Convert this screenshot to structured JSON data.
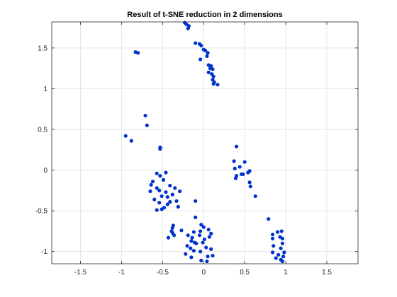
{
  "chart_data": {
    "type": "scatter",
    "title": "Result of t-SNE reduction in 2 dimensions",
    "xlabel": "",
    "ylabel": "",
    "xlim": [
      -1.85,
      1.88
    ],
    "ylim": [
      -1.15,
      1.82
    ],
    "xticks": [
      -1.5,
      -1,
      -0.5,
      0,
      0.5,
      1,
      1.5
    ],
    "yticks": [
      -1,
      -0.5,
      0,
      0.5,
      1,
      1.5
    ],
    "xtick_labels": [
      "-1.5",
      "-1",
      "-0.5",
      "0",
      "0.5",
      "1",
      "1.5"
    ],
    "ytick_labels": [
      "-1",
      "-0.5",
      "0",
      "0.5",
      "1",
      "1.5"
    ],
    "grid": true,
    "marker_color": "#0033cc",
    "series": [
      {
        "points": [
          [
            -0.23,
            1.81
          ],
          [
            -0.21,
            1.79
          ],
          [
            -0.18,
            1.77
          ],
          [
            -0.19,
            1.74
          ],
          [
            -0.1,
            1.56
          ],
          [
            -0.05,
            1.55
          ],
          [
            -0.03,
            1.53
          ],
          [
            0.0,
            1.48
          ],
          [
            0.02,
            1.47
          ],
          [
            0.05,
            1.44
          ],
          [
            0.04,
            1.4
          ],
          [
            -0.04,
            1.36
          ],
          [
            0.06,
            1.29
          ],
          [
            0.09,
            1.28
          ],
          [
            0.08,
            1.25
          ],
          [
            0.11,
            1.24
          ],
          [
            0.06,
            1.2
          ],
          [
            0.1,
            1.18
          ],
          [
            0.12,
            1.15
          ],
          [
            0.11,
            1.11
          ],
          [
            0.13,
            1.08
          ],
          [
            0.12,
            1.06
          ],
          [
            0.17,
            1.05
          ],
          [
            -0.83,
            1.45
          ],
          [
            -0.8,
            1.44
          ],
          [
            -0.71,
            0.67
          ],
          [
            -0.69,
            0.55
          ],
          [
            -0.95,
            0.42
          ],
          [
            -0.88,
            0.36
          ],
          [
            -0.53,
            0.28
          ],
          [
            -0.53,
            0.26
          ],
          [
            0.4,
            0.29
          ],
          [
            0.37,
            0.11
          ],
          [
            0.5,
            0.1
          ],
          [
            0.44,
            0.04
          ],
          [
            0.38,
            0.02
          ],
          [
            0.56,
            -0.01
          ],
          [
            0.54,
            -0.03
          ],
          [
            0.46,
            -0.05
          ],
          [
            0.48,
            -0.05
          ],
          [
            0.4,
            -0.07
          ],
          [
            0.39,
            -0.1
          ],
          [
            0.56,
            -0.15
          ],
          [
            0.57,
            -0.2
          ],
          [
            0.63,
            -0.32
          ],
          [
            -0.57,
            -0.04
          ],
          [
            -0.46,
            -0.03
          ],
          [
            -0.53,
            -0.07
          ],
          [
            -0.62,
            -0.14
          ],
          [
            -0.49,
            -0.12
          ],
          [
            -0.64,
            -0.18
          ],
          [
            -0.41,
            -0.19
          ],
          [
            -0.35,
            -0.22
          ],
          [
            -0.65,
            -0.26
          ],
          [
            -0.57,
            -0.22
          ],
          [
            -0.54,
            -0.25
          ],
          [
            -0.46,
            -0.27
          ],
          [
            -0.38,
            -0.3
          ],
          [
            -0.44,
            -0.33
          ],
          [
            -0.51,
            -0.32
          ],
          [
            -0.29,
            -0.26
          ],
          [
            -0.6,
            -0.36
          ],
          [
            -0.41,
            -0.39
          ],
          [
            -0.54,
            -0.4
          ],
          [
            -0.44,
            -0.42
          ],
          [
            -0.33,
            -0.38
          ],
          [
            -0.48,
            -0.46
          ],
          [
            -0.51,
            -0.48
          ],
          [
            -0.57,
            -0.49
          ],
          [
            -0.31,
            -0.45
          ],
          [
            -0.1,
            -0.38
          ],
          [
            -0.1,
            -0.58
          ],
          [
            -0.37,
            -0.68
          ],
          [
            -0.03,
            -0.67
          ],
          [
            -0.38,
            -0.71
          ],
          [
            0.0,
            -0.7
          ],
          [
            -0.39,
            -0.75
          ],
          [
            -0.27,
            -0.74
          ],
          [
            -0.04,
            -0.75
          ],
          [
            -0.12,
            -0.76
          ],
          [
            0.06,
            -0.73
          ],
          [
            0.09,
            -0.78
          ],
          [
            -0.38,
            -0.77
          ],
          [
            -0.36,
            -0.8
          ],
          [
            -0.19,
            -0.8
          ],
          [
            -0.05,
            -0.8
          ],
          [
            -0.43,
            -0.83
          ],
          [
            -0.14,
            -0.83
          ],
          [
            0.01,
            -0.85
          ],
          [
            0.07,
            -0.82
          ],
          [
            -0.15,
            -0.87
          ],
          [
            -0.11,
            -0.89
          ],
          [
            -0.2,
            -0.93
          ],
          [
            -0.01,
            -0.89
          ],
          [
            -0.09,
            -0.9
          ],
          [
            -0.16,
            -0.96
          ],
          [
            0.03,
            -0.95
          ],
          [
            0.09,
            -0.97
          ],
          [
            -0.12,
            -0.99
          ],
          [
            -0.04,
            -1.0
          ],
          [
            -0.22,
            -1.03
          ],
          [
            0.11,
            -1.05
          ],
          [
            0.05,
            -1.06
          ],
          [
            -0.15,
            -1.07
          ],
          [
            -0.03,
            -1.11
          ],
          [
            0.04,
            -1.12
          ],
          [
            0.79,
            -0.6
          ],
          [
            0.9,
            -0.76
          ],
          [
            0.95,
            -0.75
          ],
          [
            0.84,
            -0.79
          ],
          [
            0.93,
            -0.82
          ],
          [
            0.84,
            -0.84
          ],
          [
            0.96,
            -0.84
          ],
          [
            0.96,
            -0.9
          ],
          [
            0.85,
            -0.93
          ],
          [
            0.94,
            -0.96
          ],
          [
            0.84,
            -1.01
          ],
          [
            0.98,
            -1.01
          ],
          [
            0.91,
            -1.04
          ],
          [
            0.97,
            -1.06
          ],
          [
            0.88,
            -1.08
          ],
          [
            0.94,
            -1.1
          ],
          [
            0.96,
            -1.12
          ]
        ]
      }
    ]
  }
}
